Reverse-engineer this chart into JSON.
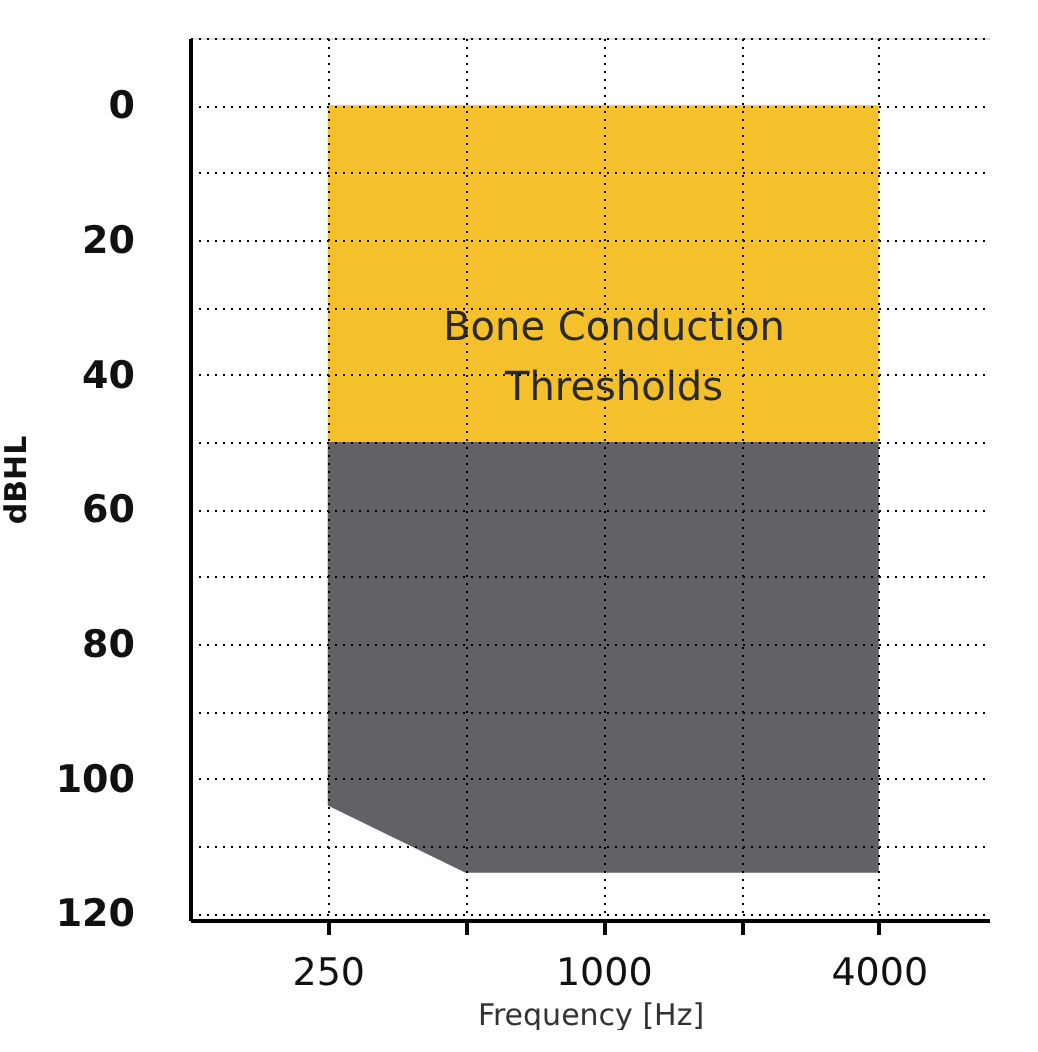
{
  "chart_data": {
    "type": "area",
    "stacked": true,
    "log": "x",
    "xlabel": "Frequency [Hz]",
    "ylabel": "dBHL",
    "xlim": [
      125,
      7000
    ],
    "xticks": [
      250,
      {
        "value": 500,
        "label": null
      },
      1000,
      {
        "value": 2000,
        "label": null
      },
      4000
    ],
    "ylim": [
      121,
      -10
    ],
    "yticks": [
      {
        "value": -10,
        "label": null
      },
      0,
      {
        "value": 10,
        "label": null
      },
      20,
      {
        "value": 30,
        "label": null
      },
      40,
      {
        "value": 50,
        "label": null
      },
      60,
      {
        "value": 70,
        "label": null
      },
      80,
      {
        "value": 90,
        "label": null
      },
      100,
      {
        "value": 110,
        "label": null
      },
      120
    ],
    "grid": true,
    "series": [
      {
        "color": "#f4c02c",
        "x": [
          250,
          500,
          4000
        ],
        "values": [
          50,
          50,
          50
        ]
      },
      {
        "color": "#636066",
        "x": [
          250,
          500,
          4000
        ],
        "values": [
          54,
          64,
          64
        ]
      }
    ],
    "annotations": [
      "Bone Conduction\nThresholds"
    ]
  }
}
